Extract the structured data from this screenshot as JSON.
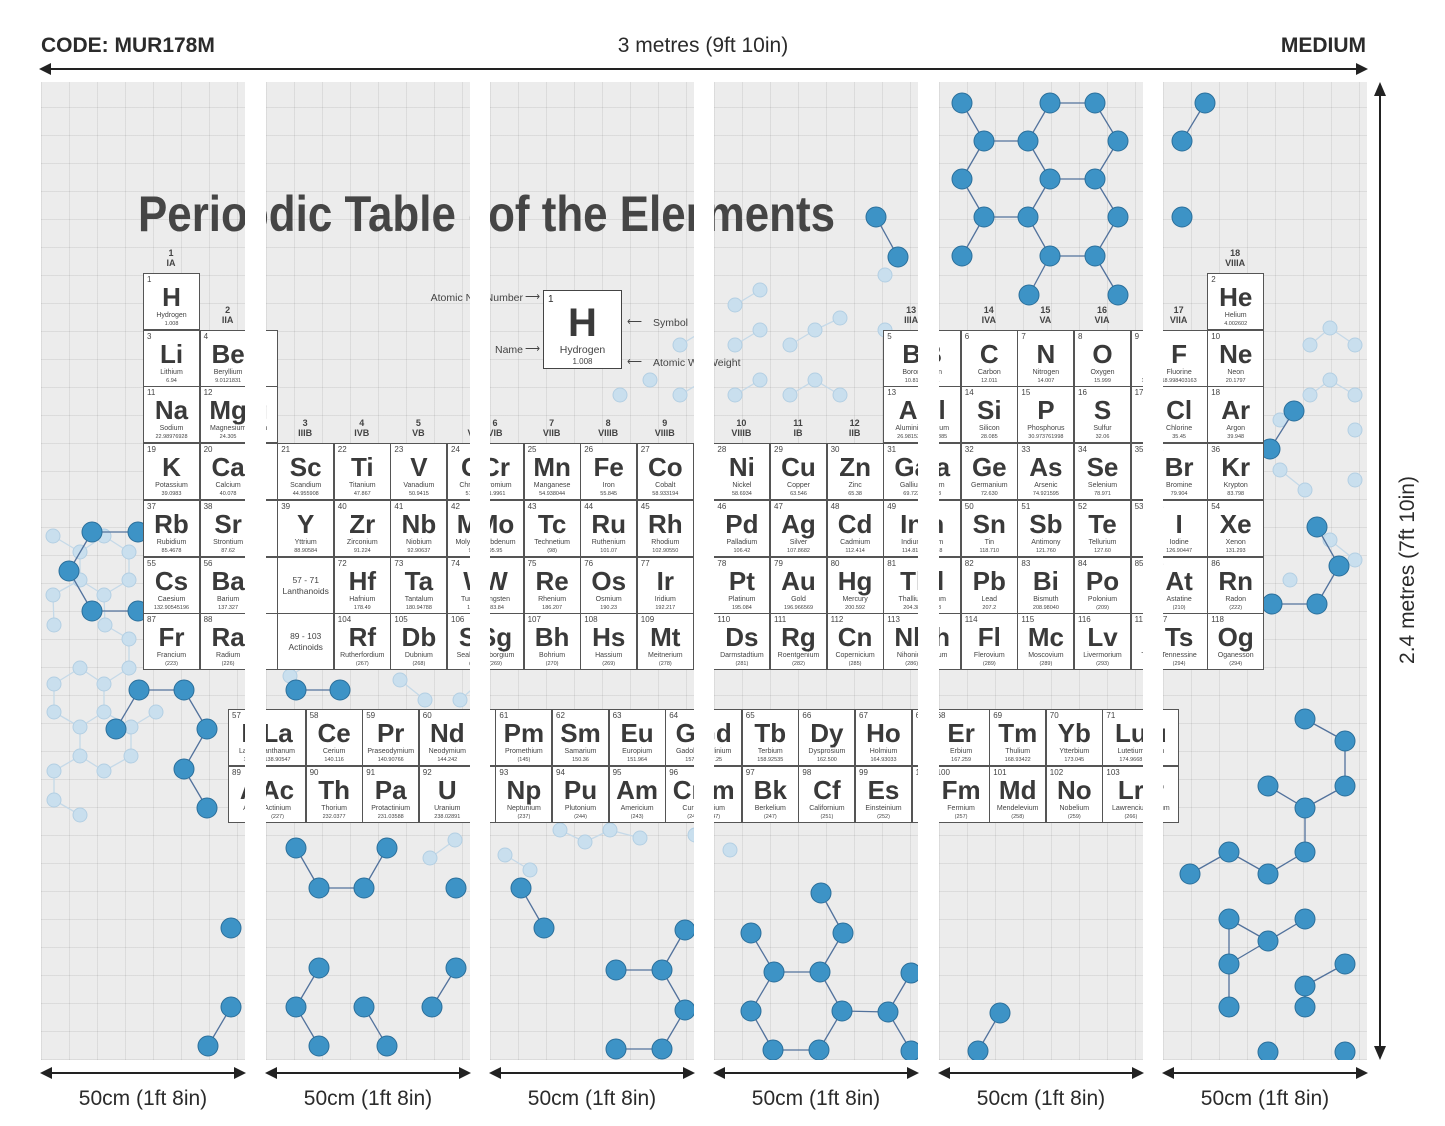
{
  "header": {
    "code": "CODE: MUR178M",
    "width_label": "3 metres (9ft 10in)",
    "finish": "MEDIUM"
  },
  "height_label": "2.4 metres (7ft 10in)",
  "panels": [
    {
      "label": "50cm (1ft 8in)"
    },
    {
      "label": "50cm (1ft 8in)"
    },
    {
      "label": "50cm (1ft 8in)"
    },
    {
      "label": "50cm (1ft 8in)"
    },
    {
      "label": "50cm (1ft 8in)"
    },
    {
      "label": "50cm (1ft 8in)"
    }
  ],
  "colors": {
    "molecule": "#3d93c6",
    "molecule_light": "#c9dfee",
    "panel_bg": "#ececec",
    "text": "#3a3a3a"
  },
  "mural": {
    "title": "Periodic Table of the Elements",
    "legend": {
      "number": "1",
      "symbol": "H",
      "name": "Hydrogen",
      "weight": "1.008",
      "atomic_number_label": "Atomic Number",
      "name_label": "Name",
      "symbol_label": "Symbol",
      "atomic_weight_label": "Atomic Weight"
    },
    "placeholders": [
      {
        "range": "57 - 71",
        "label": "Lanthanoids"
      },
      {
        "range": "89 - 103",
        "label": "Actinoids"
      }
    ],
    "groups": [
      {
        "n": "1",
        "r": "IA"
      },
      {
        "n": "2",
        "r": "IIA"
      },
      {
        "n": "3",
        "r": "IIIB"
      },
      {
        "n": "4",
        "r": "IVB"
      },
      {
        "n": "5",
        "r": "VB"
      },
      {
        "n": "6",
        "r": "VIB"
      },
      {
        "n": "7",
        "r": "VIIB"
      },
      {
        "n": "8",
        "r": "VIIIB"
      },
      {
        "n": "9",
        "r": "VIIIB"
      },
      {
        "n": "10",
        "r": "VIIIB"
      },
      {
        "n": "11",
        "r": "IB"
      },
      {
        "n": "12",
        "r": "IIB"
      },
      {
        "n": "13",
        "r": "IIIA"
      },
      {
        "n": "14",
        "r": "IVA"
      },
      {
        "n": "15",
        "r": "VA"
      },
      {
        "n": "16",
        "r": "VIA"
      },
      {
        "n": "17",
        "r": "VIIA"
      },
      {
        "n": "18",
        "r": "VIIIA"
      }
    ],
    "elements": [
      {
        "n": "1",
        "s": "H",
        "name": "Hydrogen",
        "w": "1.008"
      },
      {
        "n": "2",
        "s": "He",
        "name": "Helium",
        "w": "4.002602"
      },
      {
        "n": "3",
        "s": "Li",
        "name": "Lithium",
        "w": "6.94"
      },
      {
        "n": "4",
        "s": "Be",
        "name": "Beryllium",
        "w": "9.0121831"
      },
      {
        "n": "5",
        "s": "B",
        "name": "Boron",
        "w": "10.81"
      },
      {
        "n": "6",
        "s": "C",
        "name": "Carbon",
        "w": "12.011"
      },
      {
        "n": "7",
        "s": "N",
        "name": "Nitrogen",
        "w": "14.007"
      },
      {
        "n": "8",
        "s": "O",
        "name": "Oxygen",
        "w": "15.999"
      },
      {
        "n": "9",
        "s": "F",
        "name": "Fluorine",
        "w": "18.998403163"
      },
      {
        "n": "10",
        "s": "Ne",
        "name": "Neon",
        "w": "20.1797"
      },
      {
        "n": "11",
        "s": "Na",
        "name": "Sodium",
        "w": "22.98976928"
      },
      {
        "n": "12",
        "s": "Mg",
        "name": "Magnesium",
        "w": "24.305"
      },
      {
        "n": "13",
        "s": "Al",
        "name": "Aluminium",
        "w": "26.9815385"
      },
      {
        "n": "14",
        "s": "Si",
        "name": "Silicon",
        "w": "28.085"
      },
      {
        "n": "15",
        "s": "P",
        "name": "Phosphorus",
        "w": "30.973761998"
      },
      {
        "n": "16",
        "s": "S",
        "name": "Sulfur",
        "w": "32.06"
      },
      {
        "n": "17",
        "s": "Cl",
        "name": "Chlorine",
        "w": "35.45"
      },
      {
        "n": "18",
        "s": "Ar",
        "name": "Argon",
        "w": "39.948"
      },
      {
        "n": "19",
        "s": "K",
        "name": "Potassium",
        "w": "39.0983"
      },
      {
        "n": "20",
        "s": "Ca",
        "name": "Calcium",
        "w": "40.078"
      },
      {
        "n": "21",
        "s": "Sc",
        "name": "Scandium",
        "w": "44.955908"
      },
      {
        "n": "22",
        "s": "Ti",
        "name": "Titanium",
        "w": "47.867"
      },
      {
        "n": "23",
        "s": "V",
        "name": "Vanadium",
        "w": "50.9415"
      },
      {
        "n": "24",
        "s": "Cr",
        "name": "Chromium",
        "w": "51.9961"
      },
      {
        "n": "25",
        "s": "Mn",
        "name": "Manganese",
        "w": "54.938044"
      },
      {
        "n": "26",
        "s": "Fe",
        "name": "Iron",
        "w": "55.845"
      },
      {
        "n": "27",
        "s": "Co",
        "name": "Cobalt",
        "w": "58.933194"
      },
      {
        "n": "28",
        "s": "Ni",
        "name": "Nickel",
        "w": "58.6934"
      },
      {
        "n": "29",
        "s": "Cu",
        "name": "Copper",
        "w": "63.546"
      },
      {
        "n": "30",
        "s": "Zn",
        "name": "Zinc",
        "w": "65.38"
      },
      {
        "n": "31",
        "s": "Ga",
        "name": "Gallium",
        "w": "69.723"
      },
      {
        "n": "32",
        "s": "Ge",
        "name": "Germanium",
        "w": "72.630"
      },
      {
        "n": "33",
        "s": "As",
        "name": "Arsenic",
        "w": "74.921595"
      },
      {
        "n": "34",
        "s": "Se",
        "name": "Selenium",
        "w": "78.971"
      },
      {
        "n": "35",
        "s": "Br",
        "name": "Bromine",
        "w": "79.904"
      },
      {
        "n": "36",
        "s": "Kr",
        "name": "Krypton",
        "w": "83.798"
      },
      {
        "n": "37",
        "s": "Rb",
        "name": "Rubidium",
        "w": "85.4678"
      },
      {
        "n": "38",
        "s": "Sr",
        "name": "Strontium",
        "w": "87.62"
      },
      {
        "n": "39",
        "s": "Y",
        "name": "Yttrium",
        "w": "88.90584"
      },
      {
        "n": "40",
        "s": "Zr",
        "name": "Zirconium",
        "w": "91.224"
      },
      {
        "n": "41",
        "s": "Nb",
        "name": "Niobium",
        "w": "92.90637"
      },
      {
        "n": "42",
        "s": "Mo",
        "name": "Molybdenum",
        "w": "95.95"
      },
      {
        "n": "43",
        "s": "Tc",
        "name": "Technetium",
        "w": "(98)"
      },
      {
        "n": "44",
        "s": "Ru",
        "name": "Ruthenium",
        "w": "101.07"
      },
      {
        "n": "45",
        "s": "Rh",
        "name": "Rhodium",
        "w": "102.90550"
      },
      {
        "n": "46",
        "s": "Pd",
        "name": "Palladium",
        "w": "106.42"
      },
      {
        "n": "47",
        "s": "Ag",
        "name": "Silver",
        "w": "107.8682"
      },
      {
        "n": "48",
        "s": "Cd",
        "name": "Cadmium",
        "w": "112.414"
      },
      {
        "n": "49",
        "s": "In",
        "name": "Indium",
        "w": "114.818"
      },
      {
        "n": "50",
        "s": "Sn",
        "name": "Tin",
        "w": "118.710"
      },
      {
        "n": "51",
        "s": "Sb",
        "name": "Antimony",
        "w": "121.760"
      },
      {
        "n": "52",
        "s": "Te",
        "name": "Tellurium",
        "w": "127.60"
      },
      {
        "n": "53",
        "s": "I",
        "name": "Iodine",
        "w": "126.90447"
      },
      {
        "n": "54",
        "s": "Xe",
        "name": "Xenon",
        "w": "131.293"
      },
      {
        "n": "55",
        "s": "Cs",
        "name": "Caesium",
        "w": "132.90545196"
      },
      {
        "n": "56",
        "s": "Ba",
        "name": "Barium",
        "w": "137.327"
      },
      {
        "n": "57",
        "s": "La",
        "name": "Lanthanum",
        "w": "138.90547"
      },
      {
        "n": "58",
        "s": "Ce",
        "name": "Cerium",
        "w": "140.116"
      },
      {
        "n": "59",
        "s": "Pr",
        "name": "Praseodymium",
        "w": "140.90766"
      },
      {
        "n": "60",
        "s": "Nd",
        "name": "Neodymium",
        "w": "144.242"
      },
      {
        "n": "61",
        "s": "Pm",
        "name": "Promethium",
        "w": "(145)"
      },
      {
        "n": "62",
        "s": "Sm",
        "name": "Samarium",
        "w": "150.36"
      },
      {
        "n": "63",
        "s": "Eu",
        "name": "Europium",
        "w": "151.964"
      },
      {
        "n": "64",
        "s": "Gd",
        "name": "Gadolinium",
        "w": "157.25"
      },
      {
        "n": "65",
        "s": "Tb",
        "name": "Terbium",
        "w": "158.92535"
      },
      {
        "n": "66",
        "s": "Dy",
        "name": "Dysprosium",
        "w": "162.500"
      },
      {
        "n": "67",
        "s": "Ho",
        "name": "Holmium",
        "w": "164.93033"
      },
      {
        "n": "68",
        "s": "Er",
        "name": "Erbium",
        "w": "167.259"
      },
      {
        "n": "69",
        "s": "Tm",
        "name": "Thulium",
        "w": "168.93422"
      },
      {
        "n": "70",
        "s": "Yb",
        "name": "Ytterbium",
        "w": "173.045"
      },
      {
        "n": "71",
        "s": "Lu",
        "name": "Lutetium",
        "w": "174.9668"
      },
      {
        "n": "72",
        "s": "Hf",
        "name": "Hafnium",
        "w": "178.49"
      },
      {
        "n": "73",
        "s": "Ta",
        "name": "Tantalum",
        "w": "180.94788"
      },
      {
        "n": "74",
        "s": "W",
        "name": "Tungsten",
        "w": "183.84"
      },
      {
        "n": "75",
        "s": "Re",
        "name": "Rhenium",
        "w": "186.207"
      },
      {
        "n": "76",
        "s": "Os",
        "name": "Osmium",
        "w": "190.23"
      },
      {
        "n": "77",
        "s": "Ir",
        "name": "Iridium",
        "w": "192.217"
      },
      {
        "n": "78",
        "s": "Pt",
        "name": "Platinum",
        "w": "195.084"
      },
      {
        "n": "79",
        "s": "Au",
        "name": "Gold",
        "w": "196.966569"
      },
      {
        "n": "80",
        "s": "Hg",
        "name": "Mercury",
        "w": "200.592"
      },
      {
        "n": "81",
        "s": "Tl",
        "name": "Thallium",
        "w": "204.38"
      },
      {
        "n": "82",
        "s": "Pb",
        "name": "Lead",
        "w": "207.2"
      },
      {
        "n": "83",
        "s": "Bi",
        "name": "Bismuth",
        "w": "208.98040"
      },
      {
        "n": "84",
        "s": "Po",
        "name": "Polonium",
        "w": "(209)"
      },
      {
        "n": "85",
        "s": "At",
        "name": "Astatine",
        "w": "(210)"
      },
      {
        "n": "86",
        "s": "Rn",
        "name": "Radon",
        "w": "(222)"
      },
      {
        "n": "87",
        "s": "Fr",
        "name": "Francium",
        "w": "(223)"
      },
      {
        "n": "88",
        "s": "Ra",
        "name": "Radium",
        "w": "(226)"
      },
      {
        "n": "89",
        "s": "Ac",
        "name": "Actinium",
        "w": "(227)"
      },
      {
        "n": "90",
        "s": "Th",
        "name": "Thorium",
        "w": "232.0377"
      },
      {
        "n": "91",
        "s": "Pa",
        "name": "Protactinium",
        "w": "231.03588"
      },
      {
        "n": "92",
        "s": "U",
        "name": "Uranium",
        "w": "238.02891"
      },
      {
        "n": "93",
        "s": "Np",
        "name": "Neptunium",
        "w": "(237)"
      },
      {
        "n": "94",
        "s": "Pu",
        "name": "Plutonium",
        "w": "(244)"
      },
      {
        "n": "95",
        "s": "Am",
        "name": "Americium",
        "w": "(243)"
      },
      {
        "n": "96",
        "s": "Cm",
        "name": "Curium",
        "w": "(247)"
      },
      {
        "n": "97",
        "s": "Bk",
        "name": "Berkelium",
        "w": "(247)"
      },
      {
        "n": "98",
        "s": "Cf",
        "name": "Californium",
        "w": "(251)"
      },
      {
        "n": "99",
        "s": "Es",
        "name": "Einsteinium",
        "w": "(252)"
      },
      {
        "n": "100",
        "s": "Fm",
        "name": "Fermium",
        "w": "(257)"
      },
      {
        "n": "101",
        "s": "Md",
        "name": "Mendelevium",
        "w": "(258)"
      },
      {
        "n": "102",
        "s": "No",
        "name": "Nobelium",
        "w": "(259)"
      },
      {
        "n": "103",
        "s": "Lr",
        "name": "Lawrencium",
        "w": "(266)"
      },
      {
        "n": "104",
        "s": "Rf",
        "name": "Rutherfordium",
        "w": "(267)"
      },
      {
        "n": "105",
        "s": "Db",
        "name": "Dubnium",
        "w": "(268)"
      },
      {
        "n": "106",
        "s": "Sg",
        "name": "Seaborgium",
        "w": "(269)"
      },
      {
        "n": "107",
        "s": "Bh",
        "name": "Bohrium",
        "w": "(270)"
      },
      {
        "n": "108",
        "s": "Hs",
        "name": "Hassium",
        "w": "(269)"
      },
      {
        "n": "109",
        "s": "Mt",
        "name": "Meitnerium",
        "w": "(278)"
      },
      {
        "n": "110",
        "s": "Ds",
        "name": "Darmstadtium",
        "w": "(281)"
      },
      {
        "n": "111",
        "s": "Rg",
        "name": "Roentgenium",
        "w": "(282)"
      },
      {
        "n": "112",
        "s": "Cn",
        "name": "Copernicium",
        "w": "(285)"
      },
      {
        "n": "113",
        "s": "Nh",
        "name": "Nihonium",
        "w": "(286)"
      },
      {
        "n": "114",
        "s": "Fl",
        "name": "Flerovium",
        "w": "(289)"
      },
      {
        "n": "115",
        "s": "Mc",
        "name": "Moscovium",
        "w": "(289)"
      },
      {
        "n": "116",
        "s": "Lv",
        "name": "Livermorium",
        "w": "(293)"
      },
      {
        "n": "117",
        "s": "Ts",
        "name": "Tennessine",
        "w": "(294)"
      },
      {
        "n": "118",
        "s": "Og",
        "name": "Oganesson",
        "w": "(294)"
      }
    ]
  }
}
